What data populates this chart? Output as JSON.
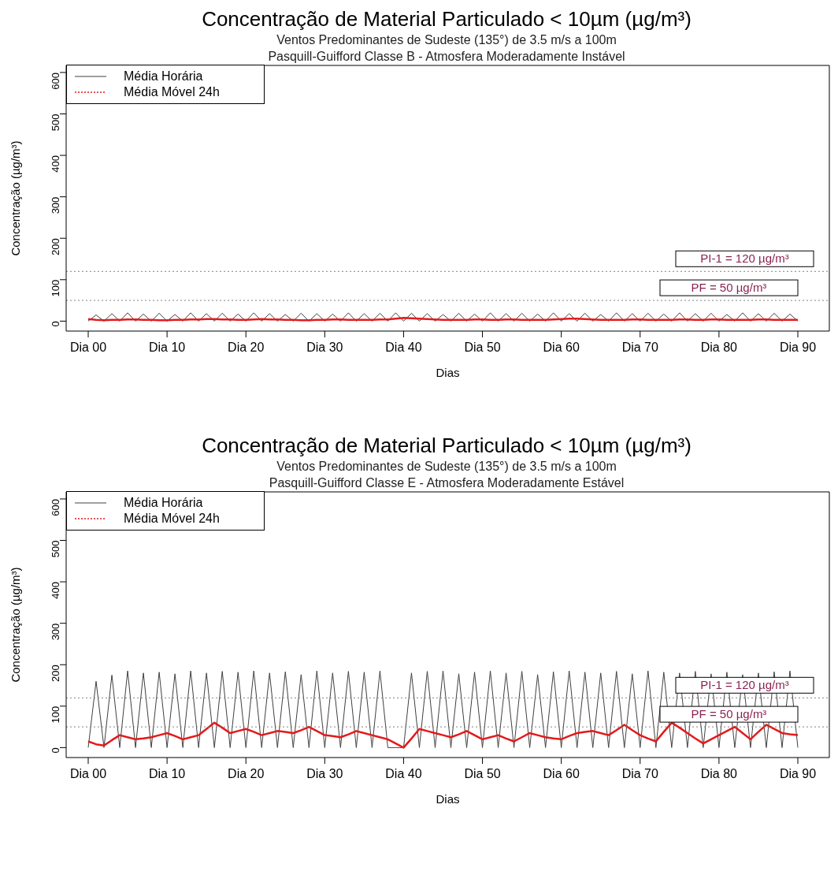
{
  "chart_data": [
    {
      "type": "line",
      "title": "Concentração de Material Particulado < 10µm (µg/m³)",
      "subtitle": "Ventos Predominantes de Sudeste (135°) de 3.5 m/s a 100m\nPasquill-Guifford Classe B - Atmosfera Moderadamente Instável",
      "xlabel": "Dias",
      "ylabel": "Concentração (µg/m³)",
      "ylim": [
        -24,
        617
      ],
      "yticks": [
        0,
        100,
        200,
        300,
        400,
        500,
        600
      ],
      "legend": "top left",
      "grid": false,
      "categories": [
        "Dia 00",
        null,
        null,
        null,
        null,
        null,
        null,
        null,
        null,
        null,
        "Dia 10",
        null,
        null,
        null,
        null,
        null,
        null,
        null,
        null,
        null,
        "Dia 20",
        null,
        null,
        null,
        null,
        null,
        null,
        null,
        null,
        null,
        "Dia 30",
        null,
        null,
        null,
        null,
        null,
        null,
        null,
        null,
        null,
        "Dia 40",
        null,
        null,
        null,
        null,
        null,
        null,
        null,
        null,
        null,
        "Dia 50",
        null,
        null,
        null,
        null,
        null,
        null,
        null,
        null,
        null,
        "Dia 60",
        null,
        null,
        null,
        null,
        null,
        null,
        null,
        null,
        null,
        "Dia 70",
        null,
        null,
        null,
        null,
        null,
        null,
        null,
        null,
        null,
        "Dia 80",
        null,
        null,
        null,
        null,
        null,
        null,
        null,
        null,
        null,
        "Dia 90"
      ],
      "ref_lines": [
        {
          "axis": "y",
          "value": 120,
          "label": "PI-1 = 120 µg/m³",
          "color": "#808080",
          "line_style": "dotted"
        },
        {
          "axis": "y",
          "value": 50,
          "label": "PF = 50 µg/m³",
          "color": "#808080",
          "line_style": "dotted"
        }
      ],
      "series": [
        {
          "name": "Média Horária",
          "color": "#404040",
          "values": [
            0,
            15,
            0,
            18,
            0,
            20,
            0,
            17,
            0,
            19,
            0,
            16,
            0,
            20,
            0,
            18,
            0,
            19,
            0,
            17,
            0,
            20,
            0,
            18,
            0,
            16,
            0,
            19,
            0,
            18,
            0,
            17,
            0,
            20,
            0,
            18,
            0,
            19,
            0,
            20,
            0,
            19,
            0,
            18,
            0,
            16,
            0,
            19,
            0,
            17,
            0,
            20,
            0,
            18,
            0,
            19,
            0,
            17,
            0,
            20,
            0,
            18,
            0,
            19,
            0,
            16,
            0,
            20,
            0,
            18,
            0,
            19,
            0,
            17,
            0,
            20,
            0,
            18,
            0,
            19,
            0,
            16,
            0,
            20,
            0,
            18,
            0,
            19,
            0,
            17,
            0
          ]
        },
        {
          "name": "Média Móvel 24h",
          "color": "#e31a1c",
          "values": [
            5,
            3,
            2,
            3,
            3,
            4,
            4,
            3,
            3,
            2,
            2,
            3,
            3,
            4,
            4,
            5,
            5,
            4,
            4,
            3,
            3,
            4,
            5,
            4,
            4,
            3,
            3,
            2,
            2,
            3,
            3,
            4,
            4,
            3,
            3,
            3,
            3,
            4,
            4,
            6,
            8,
            7,
            6,
            5,
            4,
            3,
            3,
            3,
            3,
            4,
            4,
            3,
            3,
            4,
            4,
            3,
            3,
            3,
            3,
            4,
            5,
            6,
            6,
            5,
            4,
            3,
            3,
            3,
            3,
            4,
            4,
            3,
            3,
            3,
            3,
            4,
            4,
            3,
            3,
            4,
            4,
            3,
            3,
            3,
            3,
            4,
            4,
            3,
            3,
            3,
            3
          ]
        }
      ]
    },
    {
      "type": "line",
      "title": "Concentração de Material Particulado < 10µm (µg/m³)",
      "subtitle": "Ventos Predominantes de Sudeste (135°) de 3.5 m/s a 100m\nPasquill-Guifford Classe E - Atmosfera Moderadamente Estável",
      "xlabel": "Dias",
      "ylabel": "Concentração (µg/m³)",
      "ylim": [
        -24,
        617
      ],
      "yticks": [
        0,
        100,
        200,
        300,
        400,
        500,
        600
      ],
      "legend": "top left",
      "grid": false,
      "categories": [
        "Dia 00",
        null,
        null,
        null,
        null,
        null,
        null,
        null,
        null,
        null,
        "Dia 10",
        null,
        null,
        null,
        null,
        null,
        null,
        null,
        null,
        null,
        "Dia 20",
        null,
        null,
        null,
        null,
        null,
        null,
        null,
        null,
        null,
        "Dia 30",
        null,
        null,
        null,
        null,
        null,
        null,
        null,
        null,
        null,
        "Dia 40",
        null,
        null,
        null,
        null,
        null,
        null,
        null,
        null,
        null,
        "Dia 50",
        null,
        null,
        null,
        null,
        null,
        null,
        null,
        null,
        null,
        "Dia 60",
        null,
        null,
        null,
        null,
        null,
        null,
        null,
        null,
        null,
        "Dia 70",
        null,
        null,
        null,
        null,
        null,
        null,
        null,
        null,
        null,
        "Dia 80",
        null,
        null,
        null,
        null,
        null,
        null,
        null,
        null,
        null,
        "Dia 90"
      ],
      "ref_lines": [
        {
          "axis": "y",
          "value": 120,
          "label": "PI-1 = 120 µg/m³",
          "color": "#808080",
          "line_style": "dotted"
        },
        {
          "axis": "y",
          "value": 50,
          "label": "PF = 50 µg/m³",
          "color": "#808080",
          "line_style": "dotted"
        }
      ],
      "series": [
        {
          "name": "Média Horária",
          "color": "#404040",
          "values": [
            0,
            160,
            0,
            175,
            0,
            185,
            0,
            180,
            0,
            182,
            0,
            178,
            0,
            185,
            0,
            180,
            0,
            184,
            0,
            182,
            0,
            185,
            0,
            180,
            0,
            183,
            0,
            176,
            0,
            185,
            0,
            180,
            0,
            184,
            0,
            182,
            0,
            185,
            0,
            0,
            0,
            180,
            0,
            184,
            0,
            185,
            0,
            178,
            0,
            182,
            0,
            185,
            0,
            180,
            0,
            184,
            0,
            176,
            0,
            183,
            0,
            185,
            0,
            182,
            0,
            180,
            0,
            184,
            0,
            178,
            0,
            185,
            0,
            182,
            0,
            180,
            0,
            184,
            0,
            178,
            0,
            182,
            0,
            176,
            0,
            180,
            0,
            183,
            0,
            185,
            0
          ]
        },
        {
          "name": "Média Móvel 24h",
          "color": "#e31a1c",
          "values": [
            15,
            8,
            5,
            18,
            30,
            25,
            20,
            22,
            25,
            30,
            35,
            28,
            20,
            25,
            30,
            45,
            60,
            48,
            35,
            40,
            45,
            38,
            30,
            35,
            40,
            38,
            35,
            42,
            50,
            40,
            30,
            28,
            25,
            32,
            40,
            35,
            30,
            25,
            20,
            10,
            0,
            22,
            45,
            40,
            35,
            30,
            25,
            32,
            40,
            30,
            20,
            25,
            30,
            22,
            15,
            25,
            35,
            30,
            25,
            22,
            20,
            28,
            35,
            38,
            40,
            35,
            30,
            42,
            55,
            42,
            30,
            22,
            15,
            38,
            60,
            48,
            35,
            22,
            10,
            20,
            30,
            40,
            50,
            35,
            20,
            38,
            55,
            45,
            35,
            32,
            30
          ]
        }
      ]
    }
  ]
}
